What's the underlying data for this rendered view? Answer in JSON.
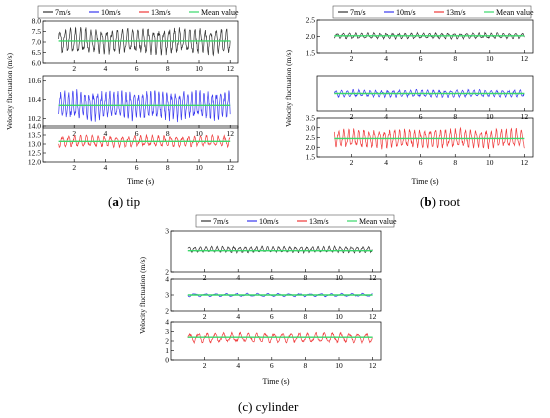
{
  "figure": {
    "captions": [
      {
        "prefix": "(",
        "letter": "a",
        "suffix": ") tip"
      },
      {
        "prefix": "(",
        "letter": "b",
        "suffix": ") root"
      },
      {
        "prefix": "(c) cylinder",
        "letter": "",
        "suffix": ""
      }
    ]
  },
  "colors": {
    "s7": "#333333",
    "s10": "#3a3aef",
    "s13": "#ef3a3a",
    "mean": "#3ad86a"
  },
  "chart_data": [
    {
      "type": "line",
      "caption": "(a) tip",
      "xlabel": "Time (s)",
      "ylabel": "Velocity fluctuation (m/s)",
      "xlim": [
        0,
        12.5
      ],
      "xticks": [
        2,
        4,
        6,
        8,
        10,
        12
      ],
      "legend": {
        "placement": "top",
        "entries": [
          "7m/s",
          "10m/s",
          "13m/s",
          "Mean value"
        ]
      },
      "panels": [
        {
          "series": "7m/s",
          "ylim": [
            6.0,
            8.0
          ],
          "yticks": [
            "6.0",
            "6.5",
            "7.0",
            "7.5",
            "8.0"
          ],
          "base": 7.05,
          "amp": 0.48,
          "mean": 7.05,
          "freq": 3.0,
          "x": [
            1,
            12
          ]
        },
        {
          "series": "10m/s",
          "ylim": [
            10.1,
            10.65
          ],
          "yticks": [
            "10.2",
            "10.4",
            "10.6"
          ],
          "base": 10.34,
          "amp": 0.12,
          "mean": 10.34,
          "freq": 3.8,
          "x": [
            1,
            12
          ]
        },
        {
          "series": "13m/s",
          "ylim": [
            12.0,
            14.0
          ],
          "yticks": [
            "12.0",
            "12.5",
            "13.0",
            "13.5",
            "14.0"
          ],
          "base": 13.15,
          "amp": 0.25,
          "mean": 13.15,
          "freq": 2.6,
          "x": [
            1,
            12
          ]
        }
      ]
    },
    {
      "type": "line",
      "caption": "(b) root",
      "xlabel": "Time (s)",
      "ylabel": "Velocity fluctuation (m/s)",
      "xlim": [
        0,
        12.5
      ],
      "xticks": [
        2,
        4,
        6,
        8,
        10,
        12
      ],
      "legend": {
        "placement": "top",
        "entries": [
          "7m/s",
          "10m/s",
          "13m/s",
          "Mean value"
        ]
      },
      "panels": [
        {
          "series": "7m/s",
          "ylim": [
            1.5,
            2.5
          ],
          "yticks": [
            "1.5",
            "2.0",
            "2.5"
          ],
          "base": 2.02,
          "amp": 0.07,
          "mean": 2.02,
          "freq": 2.8,
          "x": [
            1,
            12
          ]
        },
        {
          "series": "10m/s",
          "ylim": [
            1.8,
            3.0
          ],
          "yticks": [],
          "base": 2.4,
          "amp": 0.1,
          "mean": 2.4,
          "freq": 3.0,
          "x": [
            1,
            12
          ]
        },
        {
          "series": "13m/s",
          "ylim": [
            1.5,
            3.5
          ],
          "yticks": [
            "1.5",
            "2.0",
            "2.5",
            "3.0",
            "3.5"
          ],
          "base": 2.45,
          "amp": 0.38,
          "mean": 2.45,
          "freq": 3.4,
          "x": [
            1,
            12
          ]
        }
      ]
    },
    {
      "type": "line",
      "caption": "(c) cylinder",
      "xlabel": "Time (s)",
      "ylabel": "Velocity fluctuation (m/s)",
      "xlim": [
        0,
        12.5
      ],
      "xticks": [
        2,
        4,
        6,
        8,
        10,
        12
      ],
      "legend": {
        "placement": "top",
        "entries": [
          "7m/s",
          "10m/s",
          "13m/s",
          "Mean value"
        ]
      },
      "panels": [
        {
          "series": "7m/s",
          "ylim": [
            2,
            3
          ],
          "yticks": [
            "2",
            "3"
          ],
          "base": 2.55,
          "amp": 0.06,
          "mean": 2.52,
          "freq": 3.0,
          "x": [
            1,
            12
          ]
        },
        {
          "series": "10m/s",
          "ylim": [
            2,
            4
          ],
          "yticks": [
            "2",
            "3",
            "4"
          ],
          "base": 3.0,
          "amp": 0.08,
          "mean": 3.0,
          "freq": 1.6,
          "x": [
            1,
            12
          ]
        },
        {
          "series": "13m/s",
          "ylim": [
            0,
            4
          ],
          "yticks": [
            "0",
            "1",
            "2",
            "3",
            "4"
          ],
          "base": 2.35,
          "amp": 0.4,
          "mean": 2.4,
          "freq": 2.0,
          "x": [
            1,
            12
          ]
        }
      ]
    }
  ]
}
